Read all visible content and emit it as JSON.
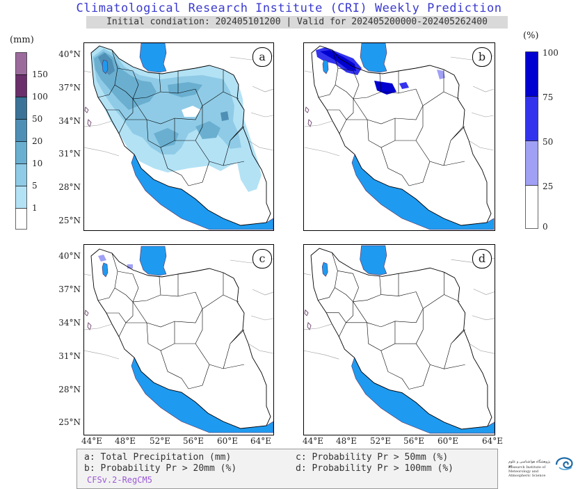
{
  "header": {
    "title": "Climatological Research Institute (CRI) Weekly Prediction",
    "subtitle": "Initial condiation: 202405101200 | Valid for 202405200000-202405262400"
  },
  "panels": {
    "a": {
      "tag": "a"
    },
    "b": {
      "tag": "b"
    },
    "c": {
      "tag": "c"
    },
    "d": {
      "tag": "d"
    }
  },
  "axes": {
    "lat_labels": [
      "40°N",
      "37°N",
      "34°N",
      "31°N",
      "28°N",
      "25°N"
    ],
    "lon_labels": [
      "44°E",
      "48°E",
      "52°E",
      "56°E",
      "60°E",
      "64°E"
    ]
  },
  "colorbar_precip": {
    "unit": "(mm)",
    "levels": [
      "150",
      "100",
      "50",
      "20",
      "10",
      "5",
      "1"
    ],
    "colors": [
      "#ffffff",
      "#b3e2f5",
      "#8fcbe6",
      "#6aafd0",
      "#4f8fb5",
      "#3a7397",
      "#6b2f6b",
      "#9b6b9b"
    ]
  },
  "colorbar_prob": {
    "unit": "(%)",
    "levels": [
      "100",
      "75",
      "50",
      "25",
      "0"
    ],
    "colors": [
      "#ffffff",
      "#a0a0f5",
      "#3333ee",
      "#0000d0"
    ]
  },
  "legend": {
    "a": "a: Total Precipitation (mm)",
    "b": "b: Probability Pr > 20mm (%)",
    "c": "c: Probability Pr > 50mm (%)",
    "d": "d: Probability Pr > 100mm (%)",
    "model": "CFSv.2-RegCM5"
  },
  "logo": {
    "name_fa": "پژوهشگاه هواشناسی و علوم جو",
    "name_en": "Research Institute of Meteorology and Atmospheric Science"
  },
  "colors": {
    "water": "#1e9bf0",
    "title": "#3a3acd"
  }
}
